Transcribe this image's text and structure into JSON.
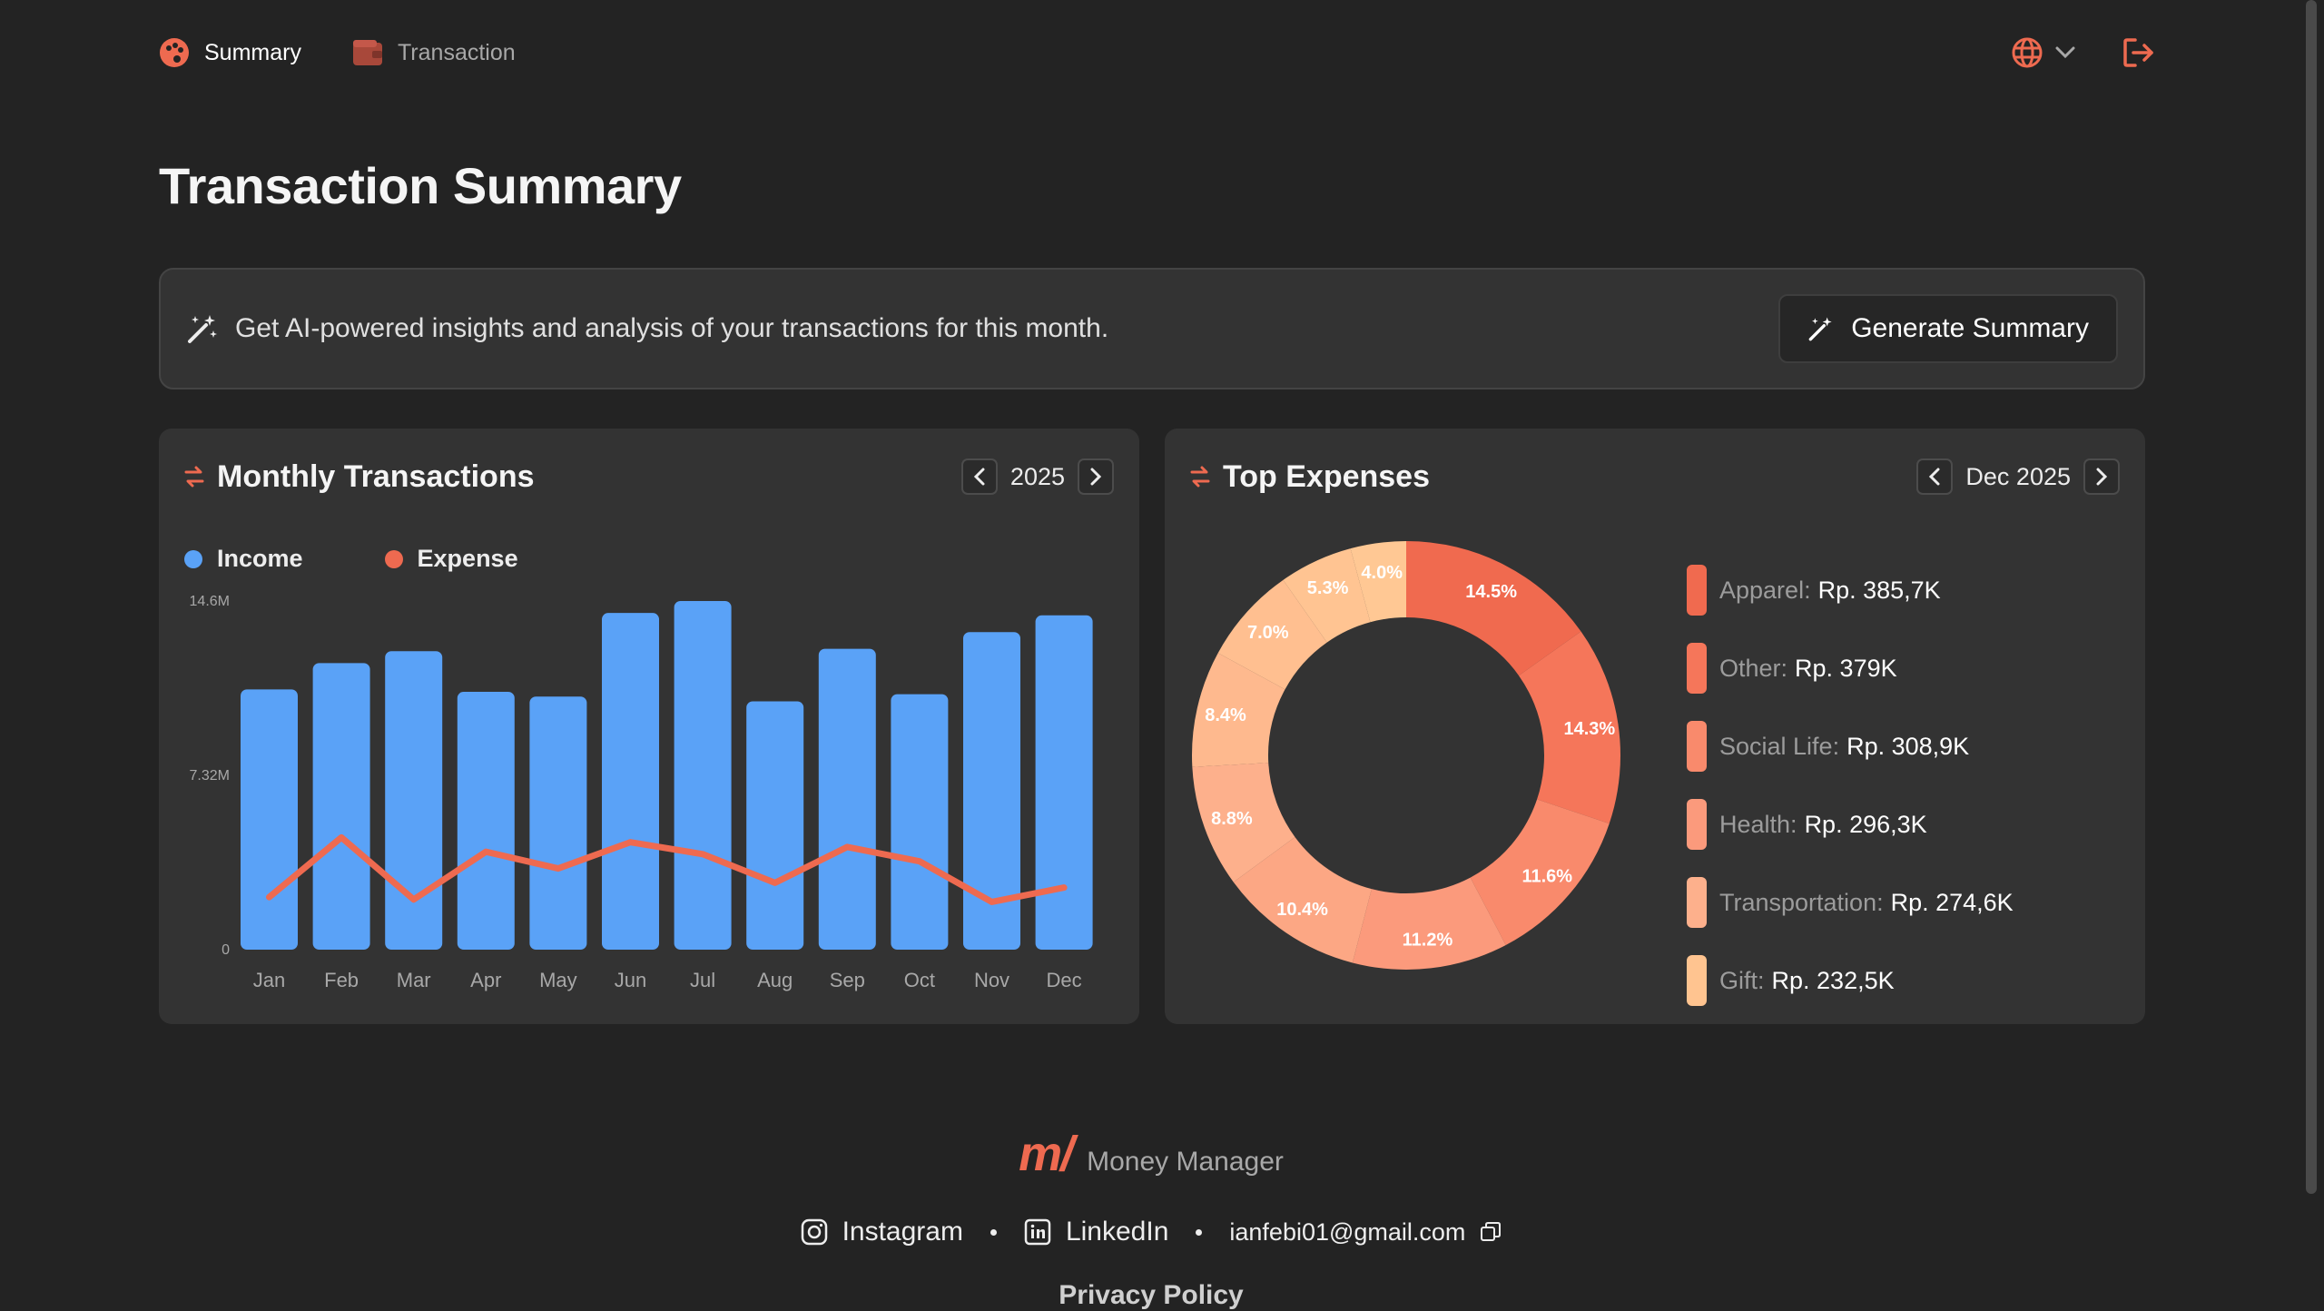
{
  "nav": {
    "summary_label": "Summary",
    "transaction_label": "Transaction"
  },
  "page": {
    "title": "Transaction Summary"
  },
  "banner": {
    "text": "Get AI-powered insights and analysis of your transactions for this month.",
    "button_label": "Generate Summary"
  },
  "monthly": {
    "title": "Monthly Transactions",
    "year": "2025",
    "legend_income": "Income",
    "legend_expense": "Expense"
  },
  "top_expenses": {
    "title": "Top Expenses",
    "period": "Dec 2025",
    "items": [
      {
        "category": "Apparel:",
        "amount": "Rp. 385,7K",
        "color": "#f06a4f"
      },
      {
        "category": "Other:",
        "amount": "Rp. 379K",
        "color": "#f5765a"
      },
      {
        "category": "Social Life:",
        "amount": "Rp. 308,9K",
        "color": "#f98a6c"
      },
      {
        "category": "Health:",
        "amount": "Rp. 296,3K",
        "color": "#fb9a7c"
      },
      {
        "category": "Transportation:",
        "amount": "Rp. 274,6K",
        "color": "#fdb08c"
      },
      {
        "category": "Gift:",
        "amount": "Rp. 232,5K",
        "color": "#ffc490"
      }
    ]
  },
  "chart_data": [
    {
      "type": "bar",
      "title": "Monthly Transactions",
      "categories": [
        "Jan",
        "Feb",
        "Mar",
        "Apr",
        "May",
        "Jun",
        "Jul",
        "Aug",
        "Sep",
        "Oct",
        "Nov",
        "Dec"
      ],
      "yticks": [
        "0",
        "7.32M",
        "14.6M"
      ],
      "ylim": [
        0,
        14.6
      ],
      "series": [
        {
          "name": "Income",
          "type": "bar",
          "color": "#5aa2f7",
          "values": [
            10.9,
            12.0,
            12.5,
            10.8,
            10.6,
            14.1,
            14.6,
            10.4,
            12.6,
            10.7,
            13.3,
            14.0
          ]
        },
        {
          "name": "Expense",
          "type": "line",
          "color": "#ee6a50",
          "values": [
            2.2,
            4.7,
            2.1,
            4.1,
            3.4,
            4.5,
            4.0,
            2.8,
            4.3,
            3.7,
            2.0,
            2.6
          ]
        }
      ],
      "legend": "top-left",
      "grid": false
    },
    {
      "type": "pie",
      "title": "Top Expenses",
      "labels": [
        "14.5%",
        "14.3%",
        "11.6%",
        "11.2%",
        "10.4%",
        "8.8%",
        "8.4%",
        "7.0%",
        "5.3%",
        "4.0%"
      ],
      "values": [
        14.5,
        14.3,
        11.6,
        11.2,
        10.4,
        8.8,
        8.4,
        7.0,
        5.3,
        4.0
      ],
      "colors": [
        "#f06a4f",
        "#f5765a",
        "#f98a6c",
        "#fb9a7c",
        "#fca784",
        "#fdb08c",
        "#feb98e",
        "#ffbf90",
        "#ffc492",
        "#ffc894"
      ],
      "donut": true
    }
  ]
}
